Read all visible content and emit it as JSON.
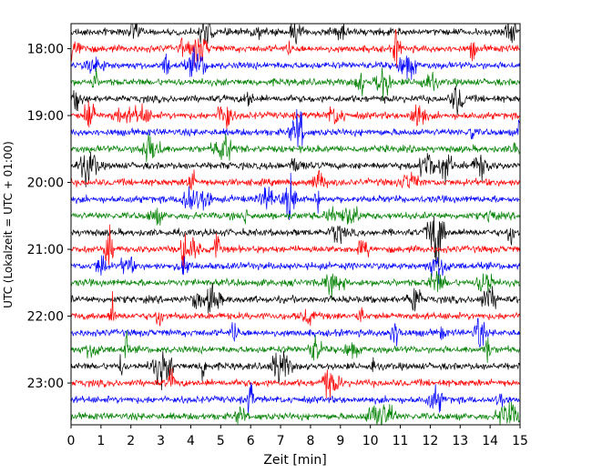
{
  "chart_data": {
    "type": "line",
    "subtype": "helicorder",
    "title": "",
    "xlabel": "Zeit  [min]",
    "ylabel": "UTC (Lokalzeit = UTC + 01:00)",
    "xlim": [
      0,
      15
    ],
    "x_ticks": [
      "0",
      "1",
      "2",
      "3",
      "4",
      "5",
      "6",
      "7",
      "8",
      "9",
      "10",
      "11",
      "12",
      "13",
      "14",
      "15"
    ],
    "y_tick_labels": [
      "18:00",
      "19:00",
      "20:00",
      "21:00",
      "22:00",
      "23:00"
    ],
    "trace_start": "17:45",
    "trace_end": "23:45",
    "minutes_per_line": 15,
    "line_count": 24,
    "trace_colors": [
      "#000000",
      "#ff0000",
      "#0000ff",
      "#008000"
    ],
    "grid": false,
    "legend": "none"
  }
}
